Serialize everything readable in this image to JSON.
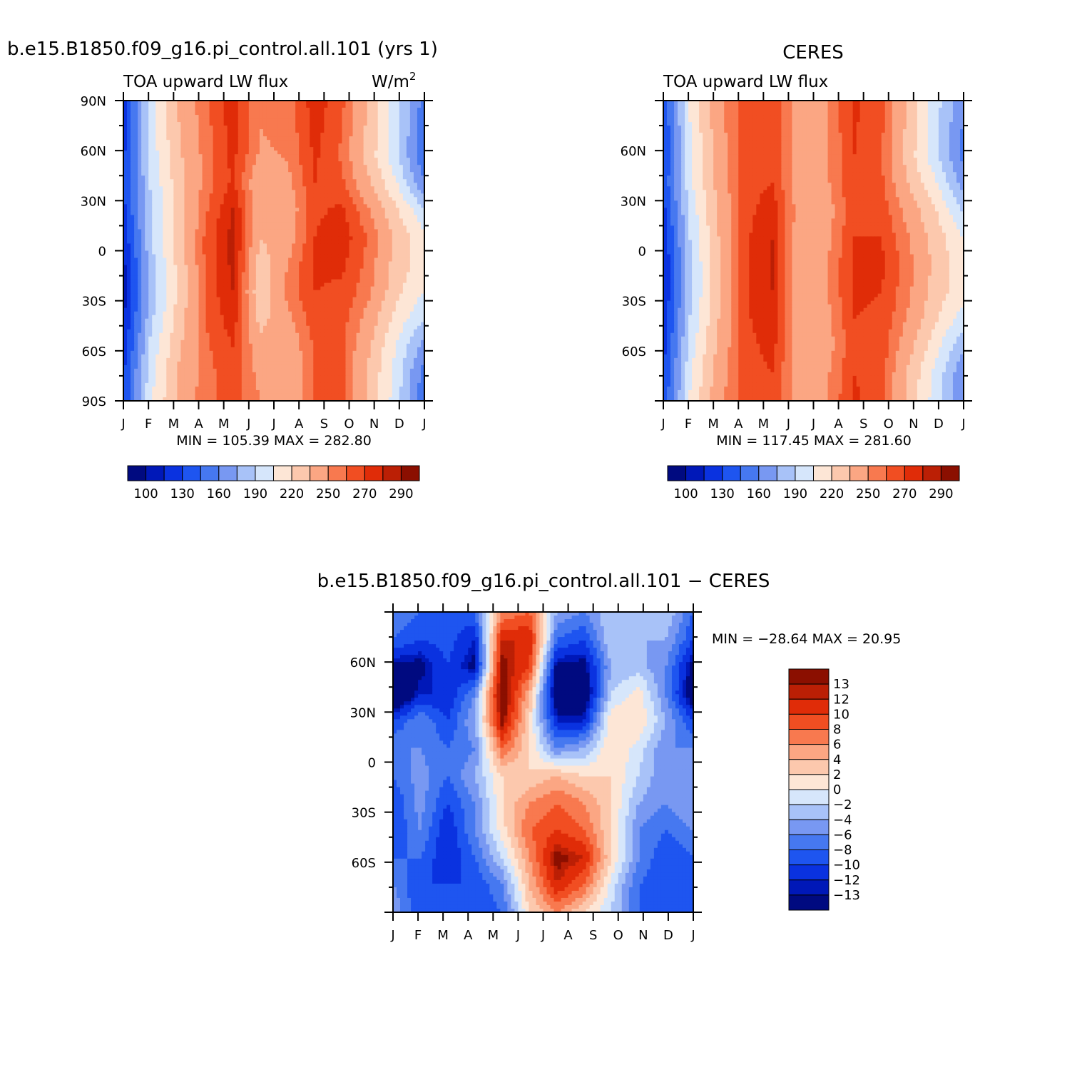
{
  "page": {
    "background": "#ffffff"
  },
  "panels": [
    {
      "id": "model",
      "title": "b.e15.B1850.f09_g16.pi_control.all.101 (yrs 1)",
      "left_label": "TOA upward LW flux",
      "units": "W/m",
      "units_sup": "2",
      "yticks": [
        "90N",
        "60N",
        "30N",
        "0",
        "30S",
        "60S",
        "90S"
      ],
      "xticks": [
        "J",
        "F",
        "M",
        "A",
        "M",
        "J",
        "J",
        "A",
        "S",
        "O",
        "N",
        "D",
        "J"
      ],
      "min_max": "MIN = 105.39 MAX = 282.80",
      "colorbar_labels": [
        "100",
        "130",
        "160",
        "190",
        "220",
        "250",
        "270",
        "290"
      ]
    },
    {
      "id": "obs",
      "title": "CERES",
      "left_label": "TOA upward LW flux",
      "yticks": [
        "60N",
        "30N",
        "0",
        "30S",
        "60S"
      ],
      "xticks": [
        "J",
        "F",
        "M",
        "A",
        "M",
        "J",
        "J",
        "A",
        "S",
        "O",
        "N",
        "D",
        "J"
      ],
      "min_max": "MIN = 117.45 MAX = 281.60",
      "colorbar_labels": [
        "100",
        "130",
        "160",
        "190",
        "220",
        "250",
        "270",
        "290"
      ]
    },
    {
      "id": "diff",
      "title": "b.e15.B1850.f09_g16.pi_control.all.101 − CERES",
      "yticks": [
        "60N",
        "30N",
        "0",
        "30S",
        "60S"
      ],
      "xticks": [
        "J",
        "F",
        "M",
        "A",
        "M",
        "J",
        "J",
        "A",
        "S",
        "O",
        "N",
        "D",
        "J"
      ],
      "min_max": "MIN = −28.64 MAX =  20.95",
      "colorbar_labels": [
        "13",
        "12",
        "10",
        "8",
        "6",
        "4",
        "2",
        "0",
        "−2",
        "−4",
        "−6",
        "−8",
        "−10",
        "−12",
        "−13"
      ]
    }
  ],
  "chart_data": [
    {
      "type": "heatmap",
      "title": "b.e15.B1850.f09_g16.pi_control.all.101 (yrs 1)",
      "subtitle": "TOA upward LW flux",
      "units": "W/m2",
      "x": [
        "J",
        "F",
        "M",
        "A",
        "M",
        "J",
        "J",
        "A",
        "S",
        "O",
        "N",
        "D"
      ],
      "y": [
        -90,
        -60,
        -30,
        0,
        30,
        60,
        90
      ],
      "ylim": [
        -90,
        90
      ],
      "min": 105.39,
      "max": 282.8,
      "levels": [
        100,
        115,
        130,
        145,
        160,
        175,
        190,
        205,
        220,
        235,
        250,
        260,
        270,
        280,
        290
      ],
      "colors": [
        "#000a80",
        "#0018b8",
        "#0a32e0",
        "#1e55f0",
        "#4678f0",
        "#7898f2",
        "#a8c2f8",
        "#d6e6fb",
        "#fde6d6",
        "#fcc8ad",
        "#fba683",
        "#f8794f",
        "#f14e22",
        "#e02c08",
        "#bb1f05",
        "#8b0f00"
      ],
      "values": [
        [
          120,
          200,
          236,
          258,
          276,
          251,
          254,
          276,
          262,
          232,
          196,
          152
        ],
        [
          122,
          198,
          234,
          256,
          275,
          250,
          253,
          274,
          260,
          230,
          194,
          150
        ],
        [
          126,
          196,
          232,
          254,
          273,
          248,
          251,
          272,
          258,
          228,
          192,
          146
        ],
        [
          130,
          192,
          228,
          254,
          272,
          236,
          246,
          270,
          262,
          236,
          205,
          160
        ],
        [
          125,
          188,
          226,
          258,
          281,
          240,
          240,
          268,
          272,
          250,
          221,
          192
        ],
        [
          118,
          188,
          226,
          262,
          284,
          236,
          242,
          270,
          276,
          258,
          232,
          208
        ],
        [
          110,
          184,
          224,
          262,
          283,
          226,
          250,
          272,
          272,
          256,
          228,
          212
        ],
        [
          108,
          182,
          222,
          262,
          280,
          222,
          254,
          270,
          268,
          252,
          224,
          204
        ],
        [
          112,
          186,
          226,
          260,
          276,
          230,
          246,
          266,
          264,
          244,
          214,
          190
        ],
        [
          120,
          194,
          232,
          258,
          270,
          240,
          240,
          262,
          262,
          236,
          204,
          168
        ],
        [
          128,
          200,
          236,
          256,
          266,
          246,
          236,
          260,
          262,
          232,
          198,
          152
        ],
        [
          130,
          202,
          238,
          256,
          266,
          250,
          236,
          260,
          262,
          232,
          196,
          148
        ]
      ]
    },
    {
      "type": "heatmap",
      "title": "CERES",
      "subtitle": "TOA upward LW flux",
      "x": [
        "J",
        "F",
        "M",
        "A",
        "M",
        "J",
        "J",
        "A",
        "S",
        "O",
        "N",
        "D"
      ],
      "y": [
        -90,
        -60,
        -30,
        0,
        30,
        60,
        90
      ],
      "ylim": [
        -90,
        90
      ],
      "min": 117.45,
      "max": 281.6,
      "levels": [
        100,
        115,
        130,
        145,
        160,
        175,
        190,
        205,
        220,
        235,
        250,
        260,
        270,
        280,
        290
      ],
      "values": [
        [
          132,
          208,
          246,
          266,
          270,
          244,
          250,
          272,
          264,
          232,
          196,
          160
        ],
        [
          130,
          206,
          244,
          266,
          270,
          244,
          250,
          271,
          262,
          230,
          194,
          158
        ],
        [
          128,
          204,
          242,
          265,
          268,
          242,
          249,
          270,
          260,
          228,
          192,
          154
        ],
        [
          132,
          202,
          240,
          266,
          270,
          240,
          248,
          270,
          262,
          234,
          206,
          168
        ],
        [
          125,
          196,
          236,
          266,
          276,
          244,
          244,
          268,
          266,
          244,
          220,
          188
        ],
        [
          118,
          192,
          234,
          268,
          280,
          240,
          246,
          270,
          270,
          250,
          228,
          204
        ],
        [
          114,
          188,
          232,
          268,
          281,
          238,
          250,
          272,
          272,
          254,
          230,
          210
        ],
        [
          114,
          188,
          232,
          268,
          280,
          236,
          250,
          272,
          270,
          252,
          228,
          210
        ],
        [
          118,
          192,
          234,
          268,
          278,
          238,
          246,
          270,
          268,
          248,
          222,
          198
        ],
        [
          124,
          198,
          238,
          266,
          274,
          240,
          244,
          268,
          266,
          240,
          210,
          176
        ],
        [
          128,
          204,
          242,
          265,
          270,
          242,
          248,
          270,
          264,
          232,
          200,
          162
        ],
        [
          132,
          208,
          246,
          266,
          270,
          244,
          250,
          272,
          264,
          232,
          196,
          160
        ]
      ]
    },
    {
      "type": "heatmap",
      "title": "b.e15.B1850.f09_g16.pi_control.all.101 − CERES",
      "x": [
        "J",
        "F",
        "M",
        "A",
        "M",
        "J",
        "J",
        "A",
        "S",
        "O",
        "N",
        "D"
      ],
      "y": [
        -90,
        -60,
        -30,
        0,
        30,
        60,
        90
      ],
      "ylim": [
        -90,
        90
      ],
      "min": -28.64,
      "max": 20.95,
      "levels": [
        -13,
        -12,
        -10,
        -8,
        -6,
        -4,
        -2,
        0,
        2,
        4,
        6,
        8,
        10,
        12,
        13
      ],
      "colors": [
        "#000a80",
        "#0018b8",
        "#0a32e0",
        "#1e55f0",
        "#4678f0",
        "#7898f2",
        "#a8c2f8",
        "#d6e6fb",
        "#fde6d6",
        "#fcc8ad",
        "#fba683",
        "#f8794f",
        "#f14e22",
        "#e02c08",
        "#bb1f05",
        "#8b0f00"
      ],
      "values": [
        [
          -6,
          -8,
          -10,
          -8,
          6,
          8,
          -4,
          -6,
          -2,
          -2,
          -2,
          -8
        ],
        [
          -8,
          -10,
          -9,
          -12,
          12,
          12,
          -8,
          -10,
          -2,
          -4,
          -4,
          -10
        ],
        [
          -14,
          -14,
          -10,
          -14,
          14,
          10,
          -14,
          -14,
          -4,
          -3,
          -6,
          -14
        ],
        [
          -18,
          -12,
          -12,
          -6,
          16,
          4,
          -16,
          -16,
          -2,
          1,
          -6,
          -16
        ],
        [
          -10,
          -6,
          -10,
          -4,
          14,
          2,
          -12,
          -12,
          2,
          2,
          -4,
          -10
        ],
        [
          -6,
          -6,
          -8,
          -6,
          8,
          2,
          -6,
          -4,
          2,
          -1,
          -6,
          -6
        ],
        [
          -8,
          -5,
          -8,
          -4,
          2,
          2,
          4,
          2,
          2,
          -2,
          -6,
          -4
        ],
        [
          -10,
          -5,
          -10,
          -6,
          2,
          6,
          8,
          6,
          2,
          -4,
          -6,
          -4
        ],
        [
          -10,
          -6,
          -12,
          -6,
          1,
          8,
          10,
          8,
          2,
          -6,
          -8,
          -6
        ],
        [
          -8,
          -8,
          -12,
          -8,
          -2,
          6,
          14,
          12,
          2,
          -6,
          -10,
          -8
        ],
        [
          -6,
          -10,
          -10,
          -10,
          -6,
          4,
          12,
          8,
          -1,
          -8,
          -10,
          -10
        ],
        [
          -4,
          -10,
          -8,
          -10,
          -8,
          2,
          6,
          2,
          -2,
          -8,
          -10,
          -8
        ]
      ]
    }
  ]
}
